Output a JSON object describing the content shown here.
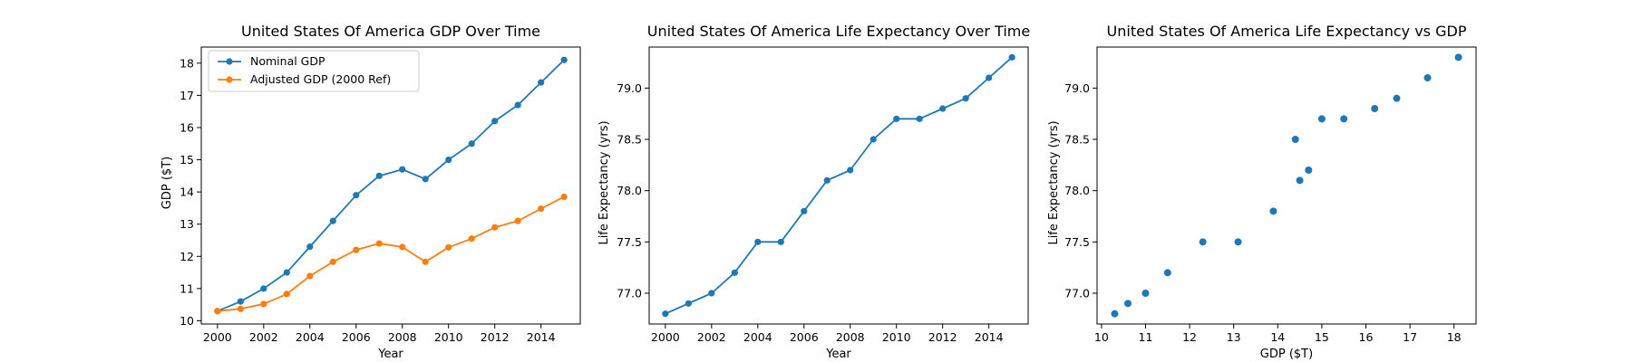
{
  "chart_data": [
    {
      "type": "line",
      "title": "United States Of America GDP Over Time",
      "xlabel": "Year",
      "ylabel": "GDP ($T)",
      "xlim": [
        1999.3,
        2015.7
      ],
      "ylim": [
        9.9,
        18.5
      ],
      "xticks": [
        2000,
        2002,
        2004,
        2006,
        2008,
        2010,
        2012,
        2014
      ],
      "yticks": [
        10,
        11,
        12,
        13,
        14,
        15,
        16,
        17,
        18
      ],
      "grid": false,
      "legend_position": "top-left",
      "x": [
        2000,
        2001,
        2002,
        2003,
        2004,
        2005,
        2006,
        2007,
        2008,
        2009,
        2010,
        2011,
        2012,
        2013,
        2014,
        2015
      ],
      "series": [
        {
          "name": "Nominal GDP",
          "color": "#1f77b4",
          "values": [
            10.3,
            10.6,
            11.0,
            11.5,
            12.3,
            13.1,
            13.9,
            14.5,
            14.7,
            14.4,
            15.0,
            15.5,
            16.2,
            16.7,
            17.4,
            18.1
          ]
        },
        {
          "name": "Adjusted GDP (2000 Ref)",
          "color": "#ff7f0e",
          "values": [
            10.3,
            10.37,
            10.52,
            10.83,
            11.39,
            11.83,
            12.2,
            12.4,
            12.29,
            11.83,
            12.28,
            12.55,
            12.9,
            13.1,
            13.48,
            13.85
          ]
        }
      ]
    },
    {
      "type": "line",
      "title": "United States Of America Life Expectancy Over Time",
      "xlabel": "Year",
      "ylabel": "Life Expectancy (yrs)",
      "xlim": [
        1999.3,
        2015.7
      ],
      "ylim": [
        76.7,
        79.4
      ],
      "xticks": [
        2000,
        2002,
        2004,
        2006,
        2008,
        2010,
        2012,
        2014
      ],
      "yticks": [
        77.0,
        77.5,
        78.0,
        78.5,
        79.0
      ],
      "ytick_format": 1,
      "grid": false,
      "x": [
        2000,
        2001,
        2002,
        2003,
        2004,
        2005,
        2006,
        2007,
        2008,
        2009,
        2010,
        2011,
        2012,
        2013,
        2014,
        2015
      ],
      "series": [
        {
          "color": "#1f77b4",
          "values": [
            76.8,
            76.9,
            77.0,
            77.2,
            77.5,
            77.5,
            77.8,
            78.1,
            78.2,
            78.5,
            78.7,
            78.7,
            78.8,
            78.9,
            79.1,
            79.3
          ]
        }
      ]
    },
    {
      "type": "scatter",
      "title": "United States Of America Life Expectancy vs GDP",
      "xlabel": "GDP ($T)",
      "ylabel": "Life Expectancy (yrs)",
      "xlim": [
        9.9,
        18.5
      ],
      "ylim": [
        76.7,
        79.4
      ],
      "xticks": [
        10,
        11,
        12,
        13,
        14,
        15,
        16,
        17,
        18
      ],
      "yticks": [
        77.0,
        77.5,
        78.0,
        78.5,
        79.0
      ],
      "ytick_format": 1,
      "grid": false,
      "series": [
        {
          "color": "#1f77b4",
          "x": [
            10.3,
            10.6,
            11.0,
            11.5,
            12.3,
            13.1,
            13.9,
            14.5,
            14.7,
            14.4,
            15.0,
            15.5,
            16.2,
            16.7,
            17.4,
            18.1
          ],
          "values": [
            76.8,
            76.9,
            77.0,
            77.2,
            77.5,
            77.5,
            77.8,
            78.1,
            78.2,
            78.5,
            78.7,
            78.7,
            78.8,
            78.9,
            79.1,
            79.3
          ]
        }
      ]
    }
  ]
}
